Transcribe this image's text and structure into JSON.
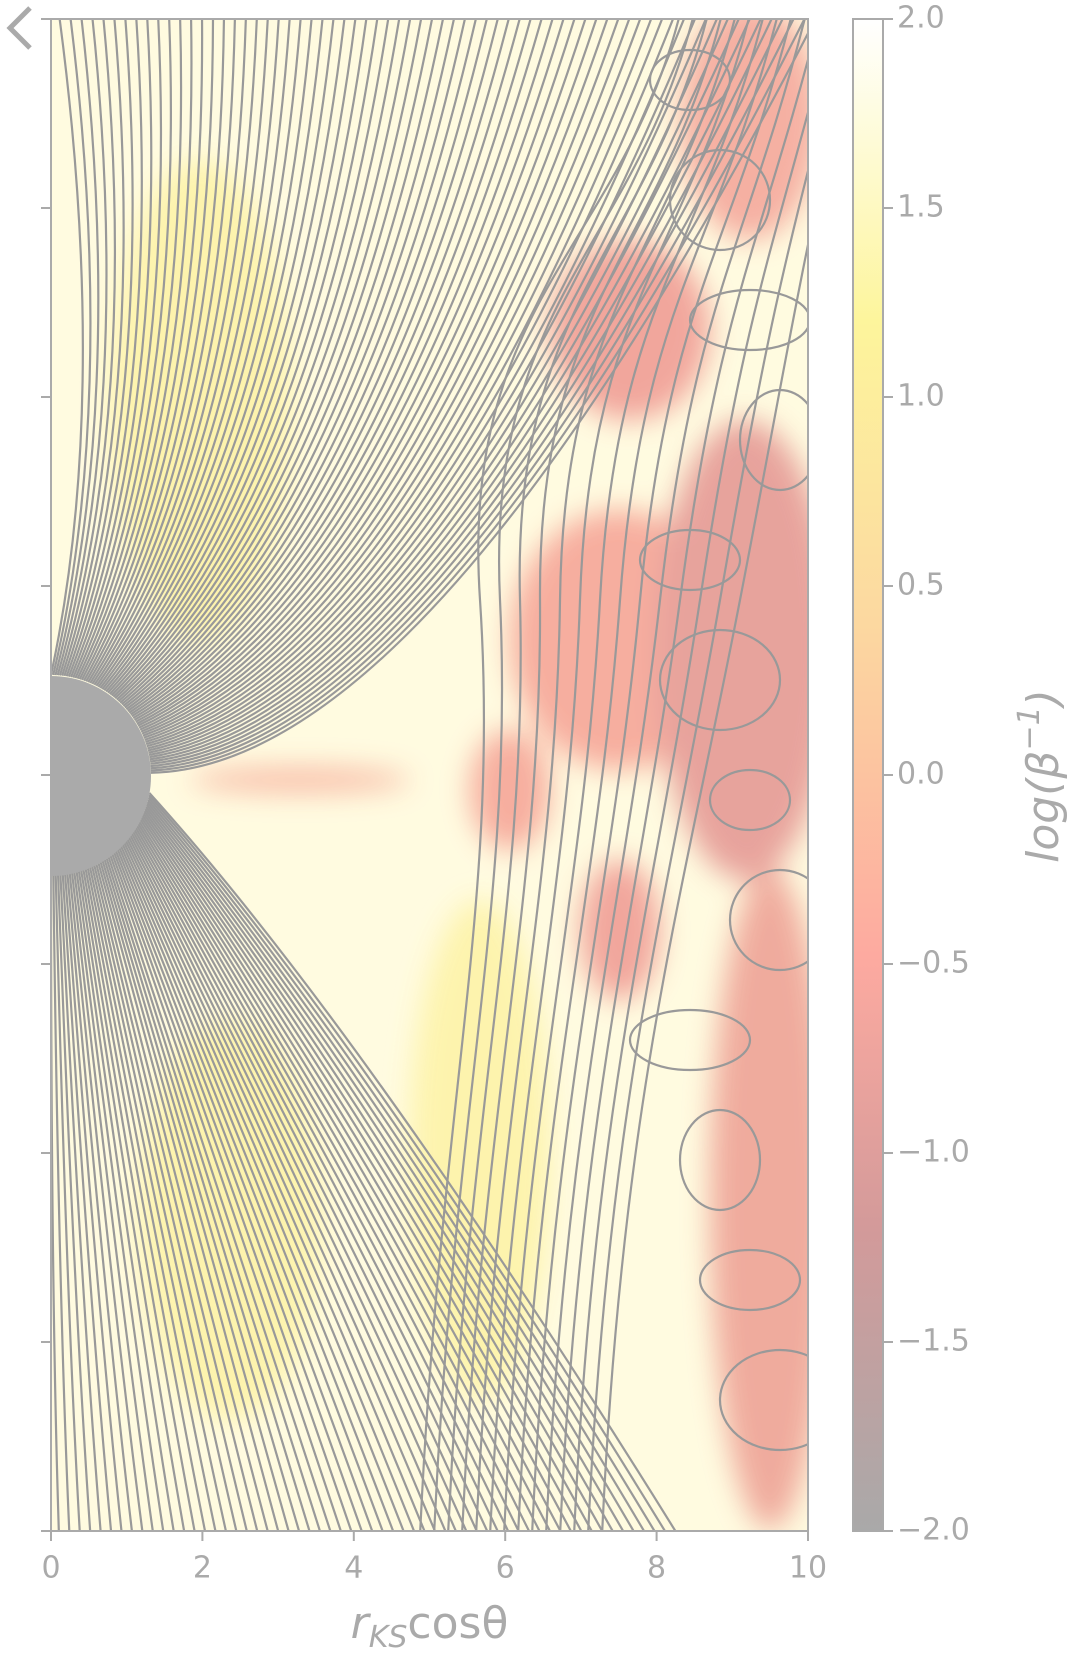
{
  "chart_data": {
    "type": "field",
    "x_label": {
      "base": "r",
      "sub": "KS",
      "rest": "cosθ"
    },
    "colorbar_label": {
      "base": "log(β",
      "sup": "−1",
      "rest": ")"
    },
    "xlim": [
      0,
      10
    ],
    "xticks": [
      0,
      2,
      4,
      6,
      8,
      10
    ],
    "ylim": [
      -10,
      10
    ],
    "yticks": [
      -10,
      -7.5,
      -5,
      -2.5,
      0,
      2.5,
      5,
      7.5,
      10
    ],
    "clim": [
      -2,
      2
    ],
    "cticks": [
      {
        "value": 2,
        "label": "2.0"
      },
      {
        "value": 1.5,
        "label": "1.5"
      },
      {
        "value": 1,
        "label": "1.0"
      },
      {
        "value": 0.5,
        "label": "0.5"
      },
      {
        "value": 0,
        "label": "0.0"
      },
      {
        "value": -0.5,
        "label": "−0.5"
      },
      {
        "value": -1,
        "label": "−1.0"
      },
      {
        "value": -1.5,
        "label": "−1.5"
      },
      {
        "value": -2,
        "label": "−2.0"
      }
    ],
    "axis_color": "#aaaaaa",
    "streamline_color": "#999999"
  }
}
